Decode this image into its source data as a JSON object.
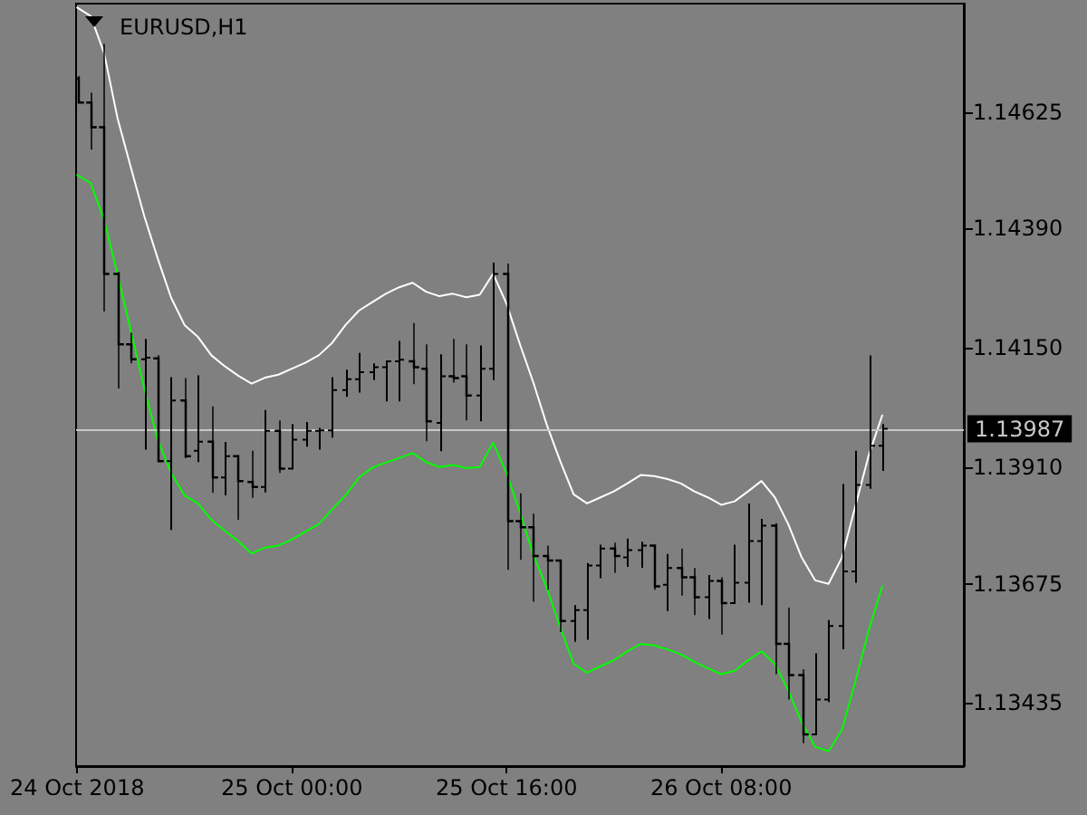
{
  "chart_data": {
    "type": "candlestick",
    "title": "EURUSD,H1",
    "color": "#000000",
    "x": [
      "2018-10-24T08:00",
      "2018-10-24T09:00",
      "2018-10-24T10:00",
      "2018-10-24T11:00",
      "2018-10-24T12:00",
      "2018-10-24T13:00",
      "2018-10-24T14:00",
      "2018-10-24T15:00",
      "2018-10-24T16:00",
      "2018-10-24T17:00",
      "2018-10-24T18:00",
      "2018-10-24T19:00",
      "2018-10-24T20:00",
      "2018-10-24T21:00",
      "2018-10-24T22:00",
      "2018-10-24T23:00",
      "2018-10-25T00:00",
      "2018-10-25T01:00",
      "2018-10-25T02:00",
      "2018-10-25T03:00",
      "2018-10-25T04:00",
      "2018-10-25T05:00",
      "2018-10-25T06:00",
      "2018-10-25T07:00",
      "2018-10-25T08:00",
      "2018-10-25T09:00",
      "2018-10-25T10:00",
      "2018-10-25T11:00",
      "2018-10-25T12:00",
      "2018-10-25T13:00",
      "2018-10-25T14:00",
      "2018-10-25T15:00",
      "2018-10-25T16:00",
      "2018-10-25T17:00",
      "2018-10-25T18:00",
      "2018-10-25T19:00",
      "2018-10-25T20:00",
      "2018-10-25T21:00",
      "2018-10-25T22:00",
      "2018-10-25T23:00",
      "2018-10-26T00:00",
      "2018-10-26T01:00",
      "2018-10-26T02:00",
      "2018-10-26T03:00",
      "2018-10-26T04:00",
      "2018-10-26T05:00",
      "2018-10-26T06:00",
      "2018-10-26T07:00",
      "2018-10-26T08:00",
      "2018-10-26T09:00",
      "2018-10-26T10:00",
      "2018-10-26T11:00",
      "2018-10-26T12:00",
      "2018-10-26T13:00",
      "2018-10-26T14:00",
      "2018-10-26T15:00",
      "2018-10-26T16:00",
      "2018-10-26T17:00",
      "2018-10-26T18:00",
      "2018-10-26T19:00",
      "2018-10-26T20:00"
    ],
    "ohlc": [
      [
        1.14692,
        1.14697,
        1.14644,
        1.14644
      ],
      [
        1.14644,
        1.14664,
        1.14549,
        1.14594
      ],
      [
        1.14594,
        1.14762,
        1.14223,
        1.14299
      ],
      [
        1.14299,
        1.14303,
        1.14068,
        1.14157
      ],
      [
        1.14157,
        1.14181,
        1.14119,
        1.14127
      ],
      [
        1.14127,
        1.14166,
        1.13947,
        1.1413
      ],
      [
        1.14129,
        1.14135,
        1.13922,
        1.13922
      ],
      [
        1.13922,
        1.14089,
        1.13785,
        1.14044
      ],
      [
        1.14044,
        1.14089,
        1.13928,
        1.13932
      ],
      [
        1.13943,
        1.14093,
        1.13922,
        1.13961
      ],
      [
        1.13961,
        1.14032,
        1.13858,
        1.13889
      ],
      [
        1.13889,
        1.13959,
        1.13855,
        1.13932
      ],
      [
        1.13932,
        1.13934,
        1.13804,
        1.13882
      ],
      [
        1.1388,
        1.13943,
        1.13848,
        1.1387
      ],
      [
        1.1387,
        1.14023,
        1.13861,
        1.13983
      ],
      [
        1.13983,
        1.14004,
        1.13898,
        1.13907
      ],
      [
        1.13907,
        1.13995,
        1.13907,
        1.13965
      ],
      [
        1.13965,
        1.13999,
        1.13953,
        1.13983
      ],
      [
        1.13983,
        1.13987,
        1.13947,
        1.13984
      ],
      [
        1.13984,
        1.14089,
        1.13971,
        1.14065
      ],
      [
        1.14065,
        1.14104,
        1.14053,
        1.14087
      ],
      [
        1.14087,
        1.14138,
        1.14062,
        1.14101
      ],
      [
        1.14101,
        1.14117,
        1.14087,
        1.14111
      ],
      [
        1.14111,
        1.14123,
        1.14044,
        1.14123
      ],
      [
        1.14123,
        1.14162,
        1.14044,
        1.14126
      ],
      [
        1.14123,
        1.142,
        1.14077,
        1.14111
      ],
      [
        1.14108,
        1.14157,
        1.13962,
        1.14002
      ],
      [
        1.13999,
        1.14135,
        1.13944,
        1.14093
      ],
      [
        1.14093,
        1.14168,
        1.1408,
        1.14089
      ],
      [
        1.14093,
        1.14157,
        1.14004,
        1.14054
      ],
      [
        1.14054,
        1.14153,
        1.14004,
        1.14108
      ],
      [
        1.14108,
        1.1432,
        1.14087,
        1.14299
      ],
      [
        1.14299,
        1.1432,
        1.13703,
        1.13801
      ],
      [
        1.13801,
        1.13857,
        1.13723,
        1.13789
      ],
      [
        1.13789,
        1.13816,
        1.13639,
        1.13731
      ],
      [
        1.13731,
        1.13752,
        1.13663,
        1.13722
      ],
      [
        1.13722,
        1.13722,
        1.13578,
        1.136
      ],
      [
        1.136,
        1.1363,
        1.1356,
        1.13622
      ],
      [
        1.13622,
        1.13715,
        1.13564,
        1.13712
      ],
      [
        1.13712,
        1.13752,
        1.13688,
        1.13746
      ],
      [
        1.13746,
        1.13758,
        1.13697,
        1.13731
      ],
      [
        1.13728,
        1.13764,
        1.13711,
        1.13743
      ],
      [
        1.13743,
        1.13758,
        1.13709,
        1.13752
      ],
      [
        1.13752,
        1.13752,
        1.13663,
        1.1367
      ],
      [
        1.13673,
        1.13733,
        1.13622,
        1.13707
      ],
      [
        1.13707,
        1.13746,
        1.13651,
        1.13688
      ],
      [
        1.13688,
        1.13707,
        1.13612,
        1.13648
      ],
      [
        1.13648,
        1.13691,
        1.13606,
        1.13681
      ],
      [
        1.13681,
        1.13688,
        1.13573,
        1.13636
      ],
      [
        1.13636,
        1.13752,
        1.13636,
        1.13677
      ],
      [
        1.13677,
        1.13835,
        1.13639,
        1.13761
      ],
      [
        1.13761,
        1.13804,
        1.13634,
        1.13792
      ],
      [
        1.13792,
        1.13797,
        1.13493,
        1.13554
      ],
      [
        1.13554,
        1.13627,
        1.13442,
        1.13491
      ],
      [
        1.13491,
        1.13503,
        1.13354,
        1.13372
      ],
      [
        1.13372,
        1.13533,
        1.13372,
        1.13442
      ],
      [
        1.13442,
        1.136,
        1.13439,
        1.1359
      ],
      [
        1.1359,
        1.13874,
        1.13545,
        1.137
      ],
      [
        1.137,
        1.13941,
        1.13679,
        1.13874
      ],
      [
        1.13874,
        1.14133,
        1.13868,
        1.13953
      ],
      [
        1.13953,
        1.13995,
        1.13904,
        1.13987
      ]
    ],
    "series": [
      {
        "type": "line",
        "color": "#ffffff",
        "values": [
          1.14835,
          1.14818,
          1.14744,
          1.14613,
          1.14513,
          1.14415,
          1.1433,
          1.14251,
          1.14196,
          1.14172,
          1.14135,
          1.14113,
          1.14094,
          1.14078,
          1.1409,
          1.14096,
          1.14108,
          1.1412,
          1.14135,
          1.1416,
          1.14196,
          1.14225,
          1.14242,
          1.14259,
          1.14272,
          1.14281,
          1.14263,
          1.14254,
          1.14259,
          1.14252,
          1.14257,
          1.14299,
          1.14239,
          1.14157,
          1.1408,
          1.13995,
          1.13922,
          1.13855,
          1.13837,
          1.13849,
          1.13861,
          1.13877,
          1.13894,
          1.13892,
          1.13886,
          1.13877,
          1.13861,
          1.13849,
          1.13834,
          1.13841,
          1.13861,
          1.13882,
          1.13849,
          1.13795,
          1.13728,
          1.13682,
          1.13675,
          1.13728,
          1.13831,
          1.13934,
          1.14014
        ]
      },
      {
        "type": "line",
        "color": "#00ff00",
        "values": [
          1.14498,
          1.14482,
          1.14408,
          1.14299,
          1.14184,
          1.14068,
          1.13965,
          1.13898,
          1.13853,
          1.13837,
          1.13804,
          1.13782,
          1.13761,
          1.13736,
          1.13748,
          1.13752,
          1.13764,
          1.1378,
          1.13795,
          1.13825,
          1.13853,
          1.13889,
          1.13909,
          1.13919,
          1.13928,
          1.13938,
          1.1392,
          1.1391,
          1.13914,
          1.13908,
          1.1391,
          1.13959,
          1.13898,
          1.13819,
          1.13733,
          1.13667,
          1.13587,
          1.13514,
          1.13496,
          1.13509,
          1.13521,
          1.13539,
          1.13554,
          1.13551,
          1.13543,
          1.13533,
          1.13518,
          1.13505,
          1.13493,
          1.135,
          1.13521,
          1.13539,
          1.13514,
          1.1346,
          1.13396,
          1.13347,
          1.13338,
          1.13381,
          1.13478,
          1.13582,
          1.1367
        ]
      }
    ],
    "xlim": [
      "2018-10-24T07:55",
      "2018-10-27T02:05"
    ],
    "xticks": [
      {
        "value": "2018-10-24T08:00",
        "label": "24 Oct 2018"
      },
      {
        "value": "2018-10-25T00:00",
        "label": "25 Oct 00:00"
      },
      {
        "value": "2018-10-25T16:00",
        "label": "25 Oct 16:00"
      },
      {
        "value": "2018-10-26T08:00",
        "label": "26 Oct 08:00"
      }
    ],
    "ylim": [
      1.13308,
      1.14843
    ],
    "yticks": [
      1.14625,
      {
        "value": 1.1439,
        "label": "1.14390"
      },
      {
        "value": 1.1415,
        "label": "1.14150"
      },
      {
        "value": 1.1391,
        "label": "1.13910"
      },
      1.13675,
      1.13435
    ],
    "ref_lines": [
      {
        "axis": "y",
        "value": 1.13987,
        "label": "1.13987",
        "color": "#c8c8c8"
      }
    ],
    "grid": false,
    "marker": "none",
    "line_style": "solid"
  }
}
